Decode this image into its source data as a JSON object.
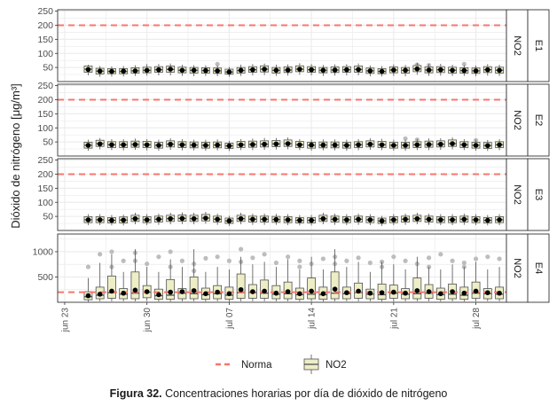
{
  "caption": {
    "label": "Figura 32.",
    "text": "Concentraciones horarias por día de dióxido de nitrógeno"
  },
  "chart_data": {
    "type": "boxplot",
    "ylabel": "Dióxido de nitrógeno [μg/m³]",
    "xlabel": "",
    "x_ticks": [
      "jun 23",
      "jun 30",
      "jul 07",
      "jul 14",
      "jul 21",
      "jul 28"
    ],
    "x_tick_days": [
      0,
      7,
      14,
      21,
      28,
      35
    ],
    "x_range_days": [
      -0.6,
      37.6
    ],
    "legend": {
      "position": "bottom",
      "entries": [
        "Norma",
        "NO2"
      ]
    },
    "colors": {
      "norma": "#f8766d",
      "box_fill": "#eeeec6",
      "box_stroke": "#505050",
      "mean": "#000000",
      "outlier": "#bdbdbd",
      "grid": "#ebebeb",
      "strip": "#ffffff"
    },
    "grid": true,
    "norma": 200,
    "panels": [
      {
        "name": "E1",
        "pollutant": "NO2",
        "yticks": [
          50,
          100,
          150,
          200,
          250
        ],
        "ylim": [
          0,
          255
        ],
        "days": [
          2,
          3,
          4,
          5,
          6,
          7,
          8,
          9,
          10,
          11,
          12,
          13,
          14,
          15,
          16,
          17,
          18,
          19,
          20,
          21,
          22,
          23,
          24,
          25,
          26,
          27,
          28,
          29,
          30,
          31,
          32,
          33,
          34,
          35,
          36,
          37
        ],
        "median": [
          44,
          37,
          36,
          36,
          38,
          40,
          42,
          43,
          40,
          40,
          39,
          38,
          34,
          39,
          42,
          44,
          40,
          41,
          44,
          42,
          40,
          41,
          42,
          43,
          38,
          36,
          41,
          40,
          45,
          41,
          42,
          40,
          39,
          38,
          42,
          40
        ],
        "q1": [
          33,
          27,
          28,
          28,
          30,
          31,
          33,
          33,
          31,
          30,
          30,
          29,
          26,
          30,
          33,
          34,
          30,
          32,
          35,
          33,
          31,
          32,
          33,
          33,
          29,
          28,
          31,
          30,
          35,
          31,
          32,
          30,
          30,
          29,
          32,
          30
        ],
        "q3": [
          55,
          47,
          46,
          46,
          49,
          51,
          53,
          55,
          51,
          50,
          49,
          48,
          44,
          50,
          53,
          56,
          50,
          52,
          56,
          53,
          50,
          52,
          53,
          55,
          48,
          46,
          52,
          50,
          57,
          52,
          53,
          51,
          49,
          48,
          53,
          51
        ],
        "wlo": [
          22,
          17,
          18,
          18,
          20,
          21,
          22,
          22,
          20,
          19,
          20,
          19,
          17,
          20,
          22,
          23,
          20,
          21,
          24,
          22,
          20,
          21,
          22,
          22,
          19,
          18,
          20,
          19,
          24,
          20,
          21,
          20,
          20,
          19,
          21,
          20
        ],
        "whi": [
          60,
          55,
          54,
          55,
          58,
          62,
          62,
          64,
          60,
          58,
          58,
          57,
          52,
          60,
          62,
          64,
          60,
          61,
          65,
          62,
          59,
          61,
          62,
          64,
          57,
          55,
          61,
          59,
          66,
          62,
          63,
          60,
          58,
          57,
          62,
          60
        ],
        "mean": [
          43,
          37,
          36,
          37,
          38,
          40,
          42,
          44,
          40,
          40,
          39,
          38,
          34,
          40,
          42,
          44,
          40,
          41,
          44,
          42,
          40,
          41,
          42,
          43,
          38,
          36,
          41,
          40,
          45,
          41,
          42,
          40,
          39,
          38,
          42,
          40
        ],
        "outliers": [
          [
            13,
            62
          ],
          [
            30,
            60
          ],
          [
            31,
            58
          ],
          [
            34,
            62
          ]
        ]
      },
      {
        "name": "E2",
        "pollutant": "NO2",
        "yticks": [
          50,
          100,
          150,
          200,
          250
        ],
        "ylim": [
          0,
          255
        ],
        "days": [
          2,
          3,
          4,
          5,
          6,
          7,
          8,
          9,
          10,
          11,
          12,
          13,
          14,
          15,
          16,
          17,
          18,
          19,
          20,
          21,
          22,
          23,
          24,
          25,
          26,
          27,
          28,
          29,
          30,
          31,
          32,
          33,
          34,
          35,
          36,
          37
        ],
        "median": [
          38,
          44,
          40,
          40,
          41,
          40,
          38,
          42,
          40,
          39,
          38,
          39,
          36,
          40,
          41,
          42,
          43,
          44,
          40,
          38,
          39,
          39,
          38,
          40,
          42,
          40,
          38,
          38,
          40,
          41,
          42,
          44,
          40,
          38,
          37,
          40
        ],
        "q1": [
          28,
          34,
          30,
          30,
          31,
          30,
          28,
          32,
          30,
          29,
          28,
          29,
          27,
          30,
          31,
          32,
          33,
          34,
          30,
          28,
          29,
          29,
          28,
          30,
          32,
          30,
          28,
          28,
          30,
          31,
          32,
          34,
          30,
          28,
          27,
          30
        ],
        "q3": [
          49,
          56,
          51,
          51,
          53,
          52,
          49,
          54,
          51,
          50,
          49,
          50,
          46,
          52,
          53,
          54,
          55,
          57,
          52,
          49,
          50,
          50,
          49,
          51,
          54,
          52,
          49,
          49,
          51,
          53,
          54,
          57,
          51,
          49,
          48,
          51
        ],
        "wlo": [
          19,
          24,
          21,
          20,
          22,
          20,
          19,
          22,
          20,
          20,
          19,
          20,
          18,
          21,
          21,
          22,
          23,
          24,
          21,
          19,
          20,
          20,
          19,
          21,
          22,
          21,
          19,
          19,
          21,
          21,
          22,
          24,
          21,
          19,
          18,
          21
        ],
        "whi": [
          58,
          64,
          60,
          60,
          62,
          60,
          58,
          63,
          60,
          58,
          58,
          59,
          54,
          60,
          62,
          64,
          64,
          66,
          60,
          58,
          59,
          59,
          58,
          60,
          63,
          61,
          58,
          58,
          60,
          62,
          63,
          66,
          60,
          58,
          57,
          60
        ],
        "mean": [
          38,
          43,
          40,
          40,
          41,
          40,
          38,
          42,
          40,
          39,
          38,
          39,
          36,
          40,
          41,
          42,
          43,
          44,
          40,
          39,
          39,
          39,
          38,
          40,
          42,
          40,
          38,
          38,
          40,
          41,
          42,
          44,
          40,
          38,
          37,
          40
        ],
        "outliers": [
          [
            29,
            62
          ],
          [
            30,
            58
          ],
          [
            35,
            56
          ]
        ]
      },
      {
        "name": "E3",
        "pollutant": "NO2",
        "yticks": [
          50,
          100,
          150,
          200,
          250
        ],
        "ylim": [
          0,
          255
        ],
        "days": [
          2,
          3,
          4,
          5,
          6,
          7,
          8,
          9,
          10,
          11,
          12,
          13,
          14,
          15,
          16,
          17,
          18,
          19,
          20,
          21,
          22,
          23,
          24,
          25,
          26,
          27,
          28,
          29,
          30,
          31,
          32,
          33,
          34,
          35,
          36,
          37
        ],
        "median": [
          38,
          38,
          36,
          37,
          42,
          38,
          40,
          42,
          43,
          42,
          44,
          40,
          34,
          42,
          40,
          40,
          39,
          38,
          36,
          36,
          42,
          40,
          38,
          40,
          38,
          34,
          38,
          40,
          42,
          40,
          38,
          38,
          40,
          38,
          36,
          38
        ],
        "q1": [
          28,
          28,
          27,
          27,
          32,
          28,
          30,
          32,
          33,
          32,
          34,
          30,
          25,
          32,
          30,
          30,
          29,
          28,
          27,
          27,
          32,
          30,
          28,
          30,
          28,
          25,
          28,
          30,
          32,
          30,
          28,
          28,
          30,
          28,
          27,
          28
        ],
        "q3": [
          49,
          49,
          46,
          48,
          54,
          49,
          51,
          54,
          55,
          54,
          57,
          51,
          44,
          54,
          51,
          51,
          50,
          49,
          46,
          46,
          54,
          51,
          49,
          51,
          49,
          44,
          49,
          51,
          54,
          51,
          49,
          49,
          51,
          49,
          46,
          49
        ],
        "wlo": [
          19,
          19,
          18,
          18,
          22,
          19,
          20,
          22,
          23,
          22,
          24,
          20,
          16,
          22,
          20,
          20,
          20,
          19,
          18,
          18,
          22,
          20,
          19,
          20,
          19,
          16,
          19,
          20,
          22,
          20,
          19,
          19,
          20,
          19,
          18,
          19
        ],
        "whi": [
          58,
          58,
          55,
          56,
          63,
          58,
          60,
          63,
          64,
          63,
          66,
          60,
          52,
          63,
          60,
          60,
          59,
          58,
          55,
          55,
          63,
          60,
          58,
          60,
          58,
          52,
          58,
          60,
          63,
          60,
          58,
          58,
          60,
          58,
          55,
          58
        ],
        "mean": [
          38,
          38,
          36,
          37,
          42,
          38,
          40,
          42,
          43,
          42,
          44,
          40,
          34,
          42,
          40,
          40,
          39,
          38,
          36,
          36,
          42,
          40,
          38,
          40,
          38,
          34,
          38,
          40,
          42,
          40,
          38,
          38,
          40,
          38,
          36,
          38
        ],
        "outliers": []
      },
      {
        "name": "E4",
        "pollutant": "NO2",
        "yticks": [
          500,
          1000
        ],
        "ylim": [
          0,
          1350
        ],
        "days": [
          2,
          3,
          4,
          5,
          6,
          7,
          8,
          9,
          10,
          11,
          12,
          13,
          14,
          15,
          16,
          17,
          18,
          19,
          20,
          21,
          22,
          23,
          24,
          25,
          26,
          27,
          28,
          29,
          30,
          31,
          32,
          33,
          34,
          35,
          36,
          37
        ],
        "median": [
          110,
          140,
          190,
          160,
          180,
          200,
          130,
          140,
          180,
          170,
          150,
          170,
          140,
          190,
          190,
          180,
          160,
          170,
          150,
          160,
          150,
          180,
          170,
          190,
          160,
          150,
          180,
          160,
          170,
          180,
          150,
          160,
          140,
          180,
          170,
          160
        ],
        "q1": [
          50,
          70,
          80,
          70,
          70,
          90,
          60,
          60,
          70,
          70,
          60,
          70,
          60,
          80,
          80,
          80,
          70,
          70,
          60,
          70,
          60,
          70,
          70,
          80,
          70,
          60,
          80,
          70,
          70,
          80,
          60,
          70,
          60,
          80,
          70,
          70
        ],
        "q3": [
          210,
          300,
          520,
          270,
          600,
          330,
          260,
          450,
          270,
          500,
          280,
          330,
          300,
          560,
          350,
          440,
          330,
          400,
          280,
          480,
          300,
          600,
          300,
          380,
          260,
          360,
          340,
          270,
          480,
          350,
          280,
          360,
          300,
          400,
          270,
          300
        ],
        "wlo": [
          10,
          20,
          20,
          20,
          20,
          25,
          15,
          15,
          20,
          20,
          15,
          20,
          15,
          20,
          20,
          20,
          20,
          20,
          15,
          20,
          15,
          20,
          20,
          20,
          20,
          15,
          20,
          20,
          20,
          20,
          15,
          20,
          15,
          20,
          20,
          20
        ],
        "whi": [
          480,
          780,
          950,
          600,
          1050,
          700,
          600,
          850,
          700,
          1050,
          600,
          700,
          650,
          900,
          750,
          800,
          700,
          850,
          650,
          900,
          650,
          1050,
          700,
          800,
          600,
          800,
          750,
          650,
          900,
          700,
          650,
          750,
          700,
          800,
          650,
          700
        ],
        "mean": [
          130,
          160,
          220,
          180,
          240,
          210,
          150,
          200,
          210,
          230,
          170,
          200,
          170,
          250,
          210,
          220,
          180,
          210,
          170,
          220,
          170,
          260,
          190,
          220,
          180,
          190,
          200,
          180,
          230,
          210,
          170,
          210,
          180,
          220,
          190,
          180
        ],
        "outliers": [
          [
            2,
            700
          ],
          [
            3,
            950
          ],
          [
            4,
            1000
          ],
          [
            5,
            820
          ],
          [
            6,
            980
          ],
          [
            7,
            760
          ],
          [
            8,
            900
          ],
          [
            9,
            1000
          ],
          [
            10,
            820
          ],
          [
            11,
            760
          ],
          [
            12,
            870
          ],
          [
            13,
            900
          ],
          [
            14,
            820
          ],
          [
            15,
            1050
          ],
          [
            16,
            880
          ],
          [
            17,
            950
          ],
          [
            18,
            780
          ],
          [
            19,
            900
          ],
          [
            20,
            820
          ],
          [
            21,
            760
          ],
          [
            22,
            860
          ],
          [
            23,
            900
          ],
          [
            24,
            820
          ],
          [
            25,
            880
          ],
          [
            26,
            780
          ],
          [
            27,
            800
          ],
          [
            28,
            900
          ],
          [
            29,
            820
          ],
          [
            30,
            760
          ],
          [
            31,
            880
          ],
          [
            32,
            950
          ],
          [
            33,
            820
          ],
          [
            34,
            780
          ],
          [
            35,
            860
          ],
          [
            36,
            900
          ],
          [
            37,
            860
          ],
          [
            4,
            700
          ],
          [
            6,
            820
          ],
          [
            9,
            700
          ],
          [
            11,
            620
          ],
          [
            15,
            800
          ],
          [
            20,
            700
          ],
          [
            23,
            760
          ],
          [
            27,
            700
          ],
          [
            31,
            700
          ],
          [
            34,
            700
          ]
        ]
      }
    ]
  }
}
